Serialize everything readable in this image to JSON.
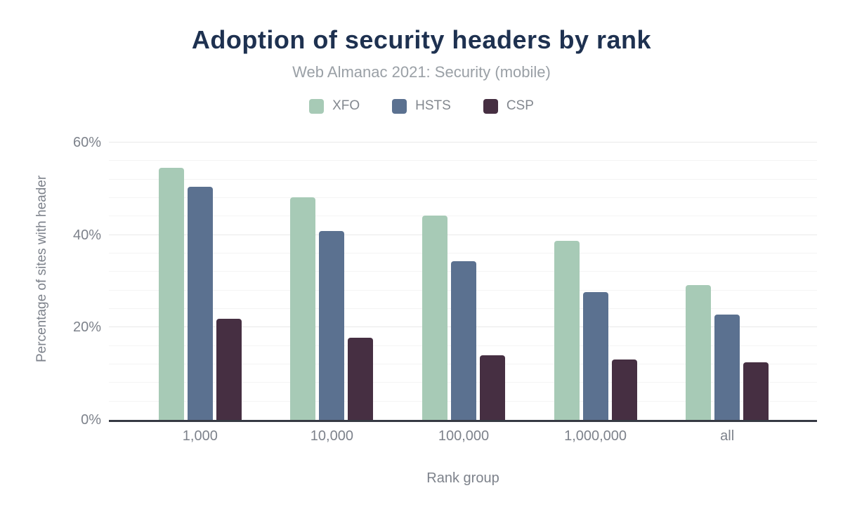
{
  "title": "Adoption of security headers by rank",
  "subtitle": "Web Almanac 2021: Security (mobile)",
  "chart_data": {
    "type": "bar",
    "categories": [
      "1,000",
      "10,000",
      "100,000",
      "1,000,000",
      "all"
    ],
    "series": [
      {
        "name": "XFO",
        "color": "#a7cab6",
        "values": [
          54.6,
          48.2,
          44.2,
          38.8,
          29.2
        ]
      },
      {
        "name": "HSTS",
        "color": "#5b7190",
        "values": [
          50.5,
          40.9,
          34.4,
          27.6,
          22.8
        ]
      },
      {
        "name": "CSP",
        "color": "#462f42",
        "values": [
          21.9,
          17.7,
          14.0,
          13.0,
          12.4
        ]
      }
    ],
    "xlabel": "Rank group",
    "ylabel": "Percentage of sites with header",
    "ylim": [
      0,
      60
    ],
    "y_major_ticks": [
      "0%",
      "20%",
      "40%",
      "60%"
    ],
    "y_major_values": [
      0,
      20,
      40,
      60
    ],
    "y_minor_step": 4,
    "grid": "on",
    "legend_position": "top"
  },
  "colors": {
    "title": "#1e3150",
    "subtitle": "#9aa0a6",
    "axis_text": "#7d828b",
    "axis_line": "#363a43",
    "grid_major": "#e9e9e9",
    "grid_minor": "#f4f4f4",
    "background": "#ffffff"
  }
}
